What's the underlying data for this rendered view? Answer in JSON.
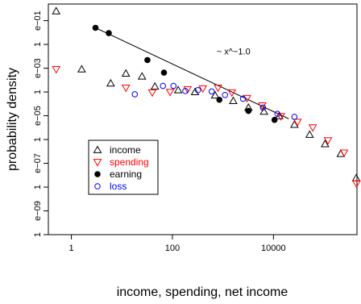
{
  "chart_data": {
    "type": "scatter",
    "title": "",
    "xlabel": "income, spending, net income",
    "ylabel": "probability density",
    "xscale": "log",
    "yscale": "log",
    "xlim": [
      0.35,
      450000
    ],
    "ylim": [
      1e-10,
      0.5
    ],
    "grid": false,
    "legend_position": "left",
    "x_ticks": [
      {
        "value": 1,
        "label": "1"
      },
      {
        "value": 100,
        "label": "100"
      },
      {
        "value": 10000,
        "label": "10000"
      }
    ],
    "y_ticks": [
      {
        "value": 0.1,
        "label": "e−01"
      },
      {
        "value": 0.01,
        "label": "1"
      },
      {
        "value": 0.001,
        "label": "e−03"
      },
      {
        "value": 0.0001,
        "label": "1"
      },
      {
        "value": 1e-05,
        "label": "e−05"
      },
      {
        "value": 1e-06,
        "label": "1"
      },
      {
        "value": 1e-07,
        "label": "e−07"
      },
      {
        "value": 1e-08,
        "label": "1"
      },
      {
        "value": 1e-09,
        "label": "e−09"
      },
      {
        "value": 1e-10,
        "label": "1"
      }
    ],
    "series": [
      {
        "name": "income",
        "marker": "triangle-up",
        "color": "#000000",
        "fill": false,
        "points": [
          [
            0.5,
            0.25
          ],
          [
            1.6,
            0.0009
          ],
          [
            6,
            0.00023
          ],
          [
            12,
            0.0006
          ],
          [
            25,
            0.00045
          ],
          [
            45,
            0.00017
          ],
          [
            130,
            0.00012
          ],
          [
            280,
            0.0001
          ],
          [
            700,
            7.2e-05
          ],
          [
            1600,
            4.2e-05
          ],
          [
            3200,
            2.2e-05
          ],
          [
            6500,
            1.5e-05
          ],
          [
            13000,
            9.8e-06
          ],
          [
            26000,
            4.2e-06
          ],
          [
            52000,
            1.6e-06
          ],
          [
            105000,
            6.5e-07
          ],
          [
            215000,
            2.5e-07
          ],
          [
            435000,
            2.4e-08
          ]
        ]
      },
      {
        "name": "spending",
        "marker": "triangle-down",
        "color": "#ff0000",
        "fill": false,
        "points": [
          [
            0.5,
            0.0009
          ],
          [
            12,
            0.00015
          ],
          [
            40,
            9.5e-05
          ],
          [
            90,
            0.0001
          ],
          [
            200,
            0.00013
          ],
          [
            400,
            0.00014
          ],
          [
            800,
            0.00015
          ],
          [
            1500,
            9.5e-05
          ],
          [
            3000,
            5.5e-05
          ],
          [
            6000,
            2.7e-05
          ],
          [
            14000,
            9.5e-06
          ],
          [
            30000,
            5.5e-06
          ],
          [
            60000,
            3.2e-06
          ],
          [
            120000,
            9.2e-07
          ],
          [
            250000,
            2.8e-07
          ],
          [
            440000,
            1.4e-08
          ]
        ]
      },
      {
        "name": "earning",
        "marker": "circle",
        "color": "#000000",
        "fill": true,
        "points": [
          [
            3,
            0.05
          ],
          [
            5.5,
            0.03
          ],
          [
            32,
            0.0022
          ],
          [
            68,
            0.00065
          ],
          [
            850,
            4.7e-05
          ],
          [
            3200,
            1.6e-05
          ],
          [
            10500,
            6.7e-06
          ]
        ]
      },
      {
        "name": "loss",
        "marker": "circle",
        "color": "#0000ff",
        "fill": false,
        "points": [
          [
            18,
            8e-05
          ],
          [
            65,
            0.00018
          ],
          [
            105,
            0.00018
          ],
          [
            180,
            0.00011
          ],
          [
            320,
            0.00012
          ],
          [
            600,
            0.000105
          ],
          [
            1100,
            7.5e-05
          ],
          [
            2500,
            5.2e-05
          ],
          [
            6200,
            2.2e-05
          ],
          [
            12000,
            1.2e-05
          ],
          [
            26000,
            9e-06
          ]
        ]
      }
    ],
    "fit_line": {
      "from": [
        3,
        0.05
      ],
      "to": [
        20000,
        7.5e-06
      ]
    },
    "annotations": [
      {
        "text": "~ x^−1.0",
        "x": 750,
        "y": 0.0038
      }
    ]
  }
}
